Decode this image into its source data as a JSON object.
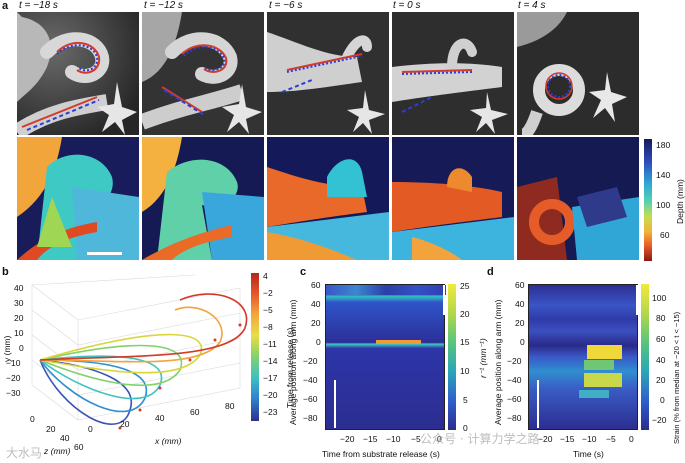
{
  "panel_a": {
    "letter": "a",
    "time_labels": [
      "t = −18 s",
      "t = −12 s",
      "t = −6 s",
      "t = 0 s",
      "t = 4 s"
    ],
    "depth_colorbar": {
      "ticks": [
        "180",
        "140",
        "100",
        "60"
      ],
      "label": "Depth (mm)"
    }
  },
  "panel_b": {
    "letter": "b",
    "y_label": "y (mm)",
    "x_label": "x (mm)",
    "z_label": "z (mm)",
    "y_ticks": [
      "40",
      "30",
      "20",
      "10",
      "0",
      "−10",
      "−20",
      "−30"
    ],
    "x_ticks": [
      "0",
      "20",
      "40",
      "60",
      "80"
    ],
    "z_ticks": [
      "0",
      "20",
      "40",
      "60"
    ],
    "colorbar_ticks": [
      "4",
      "−2",
      "−5",
      "−8",
      "−11",
      "−14",
      "−17",
      "−20",
      "−23"
    ],
    "colorbar_label": "Time from release (s)"
  },
  "panel_c": {
    "letter": "c",
    "y_label": "Average position along arm (mm)",
    "x_label": "Time from substrate release (s)",
    "y_ticks": [
      "60",
      "40",
      "20",
      "0",
      "−20",
      "−40",
      "−60",
      "−80"
    ],
    "x_ticks": [
      "−20",
      "−15",
      "−10",
      "−5",
      "0"
    ],
    "colorbar_ticks": [
      "25",
      "20",
      "15",
      "10",
      "5",
      "0"
    ],
    "colorbar_label": "r⁻¹ (mm⁻¹)"
  },
  "panel_d": {
    "letter": "d",
    "y_label": "Average position along arm (mm)",
    "x_label": "Time (s)",
    "y_ticks": [
      "60",
      "40",
      "20",
      "0",
      "−20",
      "−40",
      "−60",
      "−80"
    ],
    "x_ticks": [
      "−20",
      "−15",
      "−10",
      "−5",
      "0"
    ],
    "colorbar_ticks": [
      "100",
      "80",
      "60",
      "40",
      "20",
      "0",
      "−20"
    ],
    "colorbar_label": "Strain (% from median at −20 < t < −15)"
  },
  "watermark": {
    "left": "大水马",
    "right": "公众号 · 计算力学之路"
  },
  "colors": {
    "depth_far": "#0b1a5a",
    "depth_near": "#d23a1c",
    "line_blue": "#2b3fd6",
    "line_red": "#d43a2a"
  },
  "chart_data": [
    {
      "type": "line",
      "panel": "b",
      "xlabel": "x (mm)",
      "ylabel": "y (mm)",
      "zlabel": "z (mm)",
      "xlim": [
        0,
        90
      ],
      "ylim": [
        -35,
        45
      ],
      "colorbar_range": [
        -23,
        4
      ]
    },
    {
      "type": "heatmap",
      "panel": "c",
      "xlabel": "Time from substrate release (s)",
      "ylabel": "Average position along arm (mm)",
      "xlim": [
        -23,
        2
      ],
      "ylim": [
        -90,
        62
      ],
      "colorbar_range": [
        0,
        25
      ]
    },
    {
      "type": "heatmap",
      "panel": "d",
      "xlabel": "Time (s)",
      "ylabel": "Average position along arm (mm)",
      "xlim": [
        -23,
        2
      ],
      "ylim": [
        -90,
        62
      ],
      "colorbar_range": [
        -20,
        110
      ]
    }
  ]
}
